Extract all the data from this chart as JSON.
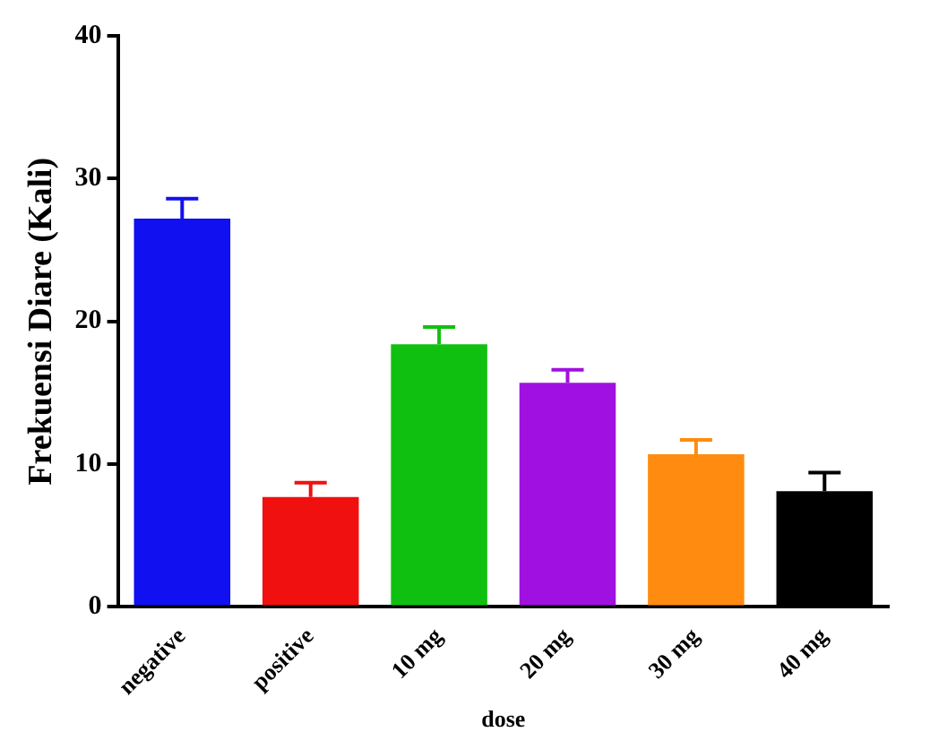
{
  "chart_data": {
    "type": "bar",
    "xlabel": "dose",
    "ylabel": "Frekuensi Diare (Kali)",
    "categories": [
      "negative",
      "positive",
      "10 mg",
      "20 mg",
      "30 mg",
      "40 mg"
    ],
    "values": [
      27.2,
      7.7,
      18.4,
      15.7,
      10.7,
      8.1
    ],
    "colors": [
      "#1010f0",
      "#f01010",
      "#10c010",
      "#a010e0",
      "#ff8c10",
      "#000000"
    ],
    "errors": [
      [
        27.2,
        28.6
      ],
      [
        7.7,
        8.7
      ],
      [
        18.4,
        19.6
      ],
      [
        15.7,
        16.6
      ],
      [
        10.7,
        11.7
      ],
      [
        8.1,
        9.4
      ]
    ],
    "ylim": [
      0,
      40
    ],
    "yticks": [
      0,
      10,
      20,
      30,
      40
    ],
    "grid": false,
    "legend": false
  }
}
